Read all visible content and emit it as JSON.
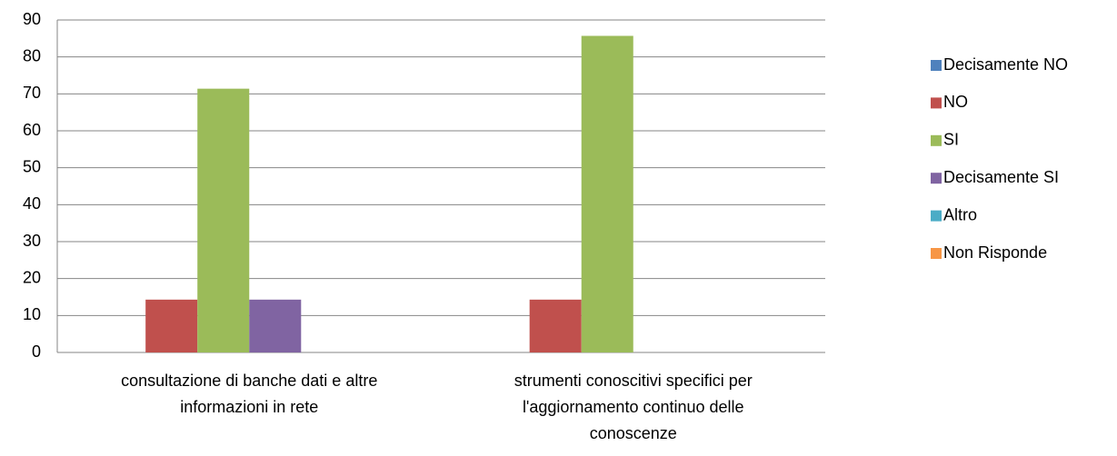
{
  "chart_data": {
    "type": "bar",
    "categories": [
      "consultazione di banche dati e altre informazioni in rete",
      "strumenti conoscitivi specifici per l'aggiornamento continuo delle conoscenze"
    ],
    "series": [
      {
        "name": "Decisamente NO",
        "color": "#4F81BD",
        "values": [
          0,
          0
        ]
      },
      {
        "name": "NO",
        "color": "#C0504D",
        "values": [
          14.3,
          14.3
        ]
      },
      {
        "name": "SI",
        "color": "#9BBB59",
        "values": [
          71.4,
          85.7
        ]
      },
      {
        "name": "Decisamente SI",
        "color": "#8064A2",
        "values": [
          14.3,
          0
        ]
      },
      {
        "name": "Altro",
        "color": "#4BACC6",
        "values": [
          0,
          0
        ]
      },
      {
        "name": "Non Risponde",
        "color": "#F79646",
        "values": [
          0,
          0
        ]
      }
    ],
    "ylim": [
      0,
      90
    ],
    "yticks": [
      0,
      10,
      20,
      30,
      40,
      50,
      60,
      70,
      80,
      90
    ],
    "grid": true,
    "legend": "right"
  }
}
